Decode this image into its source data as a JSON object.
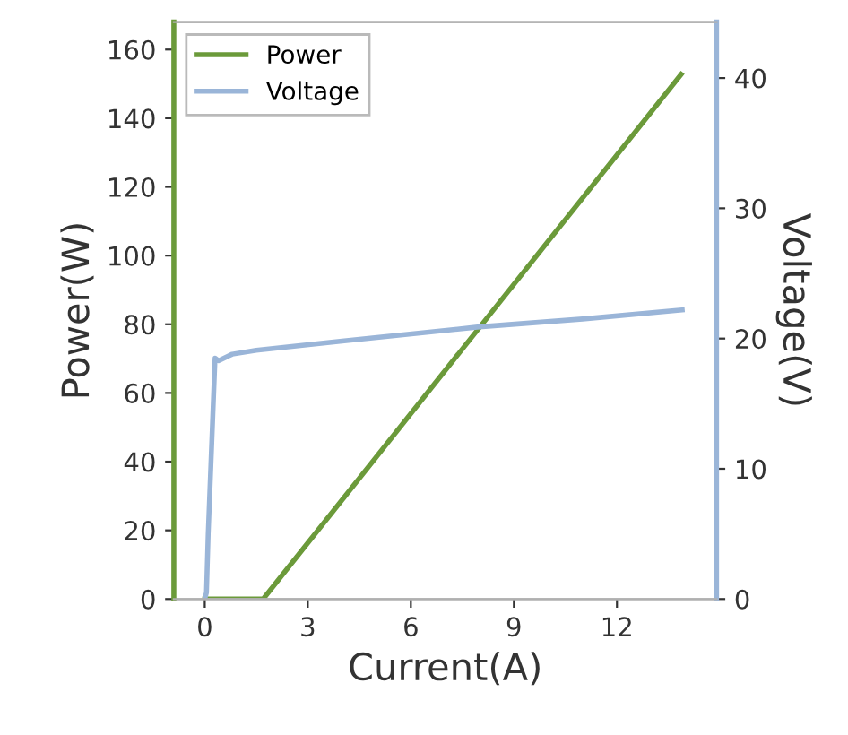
{
  "chart_data": {
    "type": "line",
    "xlabel": "Current(A)",
    "ylabel": "Power(W)",
    "y2label": "Voltage(V)",
    "xlim": [
      -0.9,
      14.9
    ],
    "xticks": [
      0,
      3,
      6,
      9,
      12
    ],
    "ylim": [
      0,
      168
    ],
    "yticks": [
      0,
      20,
      40,
      60,
      80,
      100,
      120,
      140,
      160
    ],
    "y2lim": [
      0,
      44.3
    ],
    "y2ticks": [
      0,
      10,
      20,
      30,
      40
    ],
    "legend": "top left",
    "grid": false,
    "marker": "none",
    "line_style": "solid",
    "series": [
      {
        "name": "Power",
        "color": "#6b9a3a",
        "x": [
          0,
          1.7,
          13.87
        ],
        "values": [
          0,
          0,
          152.8
        ]
      },
      {
        "name": "Voltage",
        "color": "#9ab5d8",
        "axis": "y2",
        "x": [
          0,
          0.05,
          0.1,
          0.3,
          0.4,
          0.8,
          1.5,
          4,
          8,
          11,
          13.9
        ],
        "values": [
          0,
          0.5,
          5,
          18.5,
          18.3,
          18.8,
          19.1,
          19.8,
          20.9,
          21.5,
          22.2
        ]
      }
    ]
  }
}
